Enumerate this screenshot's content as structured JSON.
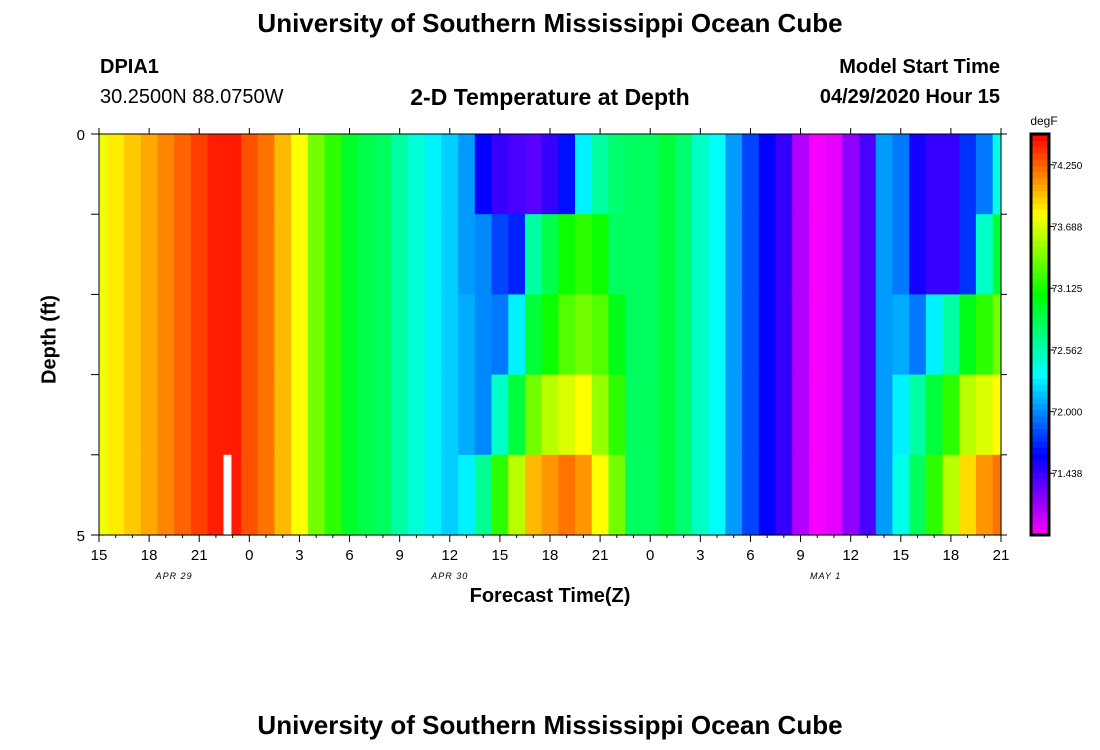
{
  "header": {
    "title": "University of Southern Mississippi Ocean Cube",
    "station_id": "DPIA1",
    "station_coords": "30.2500N 88.0750W",
    "plot_title": "2-D Temperature at Depth",
    "model_start_label": "Model Start Time",
    "model_start_value": "04/29/2020 Hour 15"
  },
  "footer": {
    "title": "University of Southern Mississippi Ocean Cube"
  },
  "chart_data": {
    "type": "heatmap",
    "title": "2-D Temperature at Depth",
    "xlabel": "Forecast Time(Z)",
    "ylabel": "Depth (ft)",
    "x_hours": [
      15,
      16,
      17,
      18,
      19,
      20,
      21,
      22,
      23,
      0,
      1,
      2,
      3,
      4,
      5,
      6,
      7,
      8,
      9,
      10,
      11,
      12,
      13,
      14,
      15,
      16,
      17,
      18,
      19,
      20,
      21,
      22,
      23,
      0,
      1,
      2,
      3,
      4,
      5,
      6,
      7,
      8,
      9,
      10,
      11,
      12,
      13,
      14,
      15,
      16,
      17,
      18,
      19,
      20,
      21
    ],
    "x_tick_labels": [
      "15",
      "18",
      "21",
      "0",
      "3",
      "6",
      "9",
      "12",
      "15",
      "18",
      "21",
      "0",
      "3",
      "6",
      "9",
      "12",
      "15",
      "18",
      "21"
    ],
    "date_labels": [
      {
        "label": "APR 29",
        "at_step": 4.5
      },
      {
        "label": "APR 30",
        "at_step": 21
      },
      {
        "label": "MAY 1",
        "at_step": 43.5
      }
    ],
    "y_ticks": [
      "0",
      "5"
    ],
    "ylim": [
      0,
      5
    ],
    "depth_rows": [
      0.5,
      1.5,
      2.5,
      3.5,
      4.5
    ],
    "colorbar": {
      "units": "degF",
      "min": 70.875,
      "max": 74.531,
      "ticks": [
        "74.250",
        "73.688",
        "73.125",
        "72.562",
        "72.000",
        "71.438"
      ]
    },
    "temperature_degF": [
      [
        73.75,
        73.85,
        73.95,
        74.05,
        74.15,
        74.25,
        74.35,
        74.45,
        74.45,
        74.3,
        74.2,
        74.0,
        73.8,
        73.4,
        73.2,
        72.95,
        72.85,
        72.8,
        72.6,
        72.45,
        72.3,
        72.2,
        72.05,
        71.6,
        71.45,
        71.4,
        71.35,
        71.45,
        71.65,
        72.3,
        72.6,
        72.75,
        72.8,
        72.8,
        72.9,
        72.75,
        72.5,
        72.35,
        72.05,
        71.8,
        71.6,
        71.45,
        71.1,
        70.9,
        70.95,
        71.2,
        71.4,
        72.05,
        71.95,
        71.55,
        71.45,
        71.45,
        71.75,
        71.95,
        72.4
      ],
      [
        73.75,
        73.85,
        73.95,
        74.05,
        74.15,
        74.25,
        74.35,
        74.45,
        74.45,
        74.3,
        74.2,
        74.0,
        73.8,
        73.4,
        73.2,
        72.95,
        72.85,
        72.8,
        72.6,
        72.45,
        72.3,
        72.2,
        72.05,
        72.0,
        71.8,
        71.7,
        72.6,
        72.85,
        73.1,
        73.2,
        73.1,
        72.8,
        72.8,
        72.8,
        72.9,
        72.75,
        72.5,
        72.35,
        72.05,
        71.8,
        71.6,
        71.45,
        71.1,
        70.9,
        70.95,
        71.2,
        71.4,
        72.05,
        71.95,
        71.55,
        71.45,
        71.45,
        71.75,
        72.5,
        72.9
      ],
      [
        73.75,
        73.85,
        73.95,
        74.05,
        74.15,
        74.25,
        74.35,
        74.45,
        74.45,
        74.3,
        74.2,
        74.0,
        73.8,
        73.4,
        73.2,
        72.95,
        72.85,
        72.8,
        72.6,
        72.45,
        72.3,
        72.2,
        72.1,
        72.0,
        71.95,
        72.3,
        72.9,
        73.1,
        73.3,
        73.4,
        73.3,
        73.0,
        72.8,
        72.8,
        72.9,
        72.75,
        72.5,
        72.35,
        72.05,
        71.8,
        71.6,
        71.45,
        71.1,
        70.9,
        70.95,
        71.2,
        71.4,
        72.05,
        72.1,
        71.95,
        72.3,
        72.6,
        73.0,
        73.2,
        73.4
      ],
      [
        73.75,
        73.85,
        73.95,
        74.05,
        74.15,
        74.25,
        74.35,
        74.45,
        74.45,
        74.3,
        74.2,
        74.0,
        73.8,
        73.4,
        73.2,
        72.95,
        72.85,
        72.8,
        72.6,
        72.45,
        72.3,
        72.2,
        72.1,
        72.0,
        72.5,
        72.9,
        73.4,
        73.6,
        73.7,
        73.8,
        73.5,
        73.2,
        72.8,
        72.8,
        72.9,
        72.75,
        72.5,
        72.35,
        72.05,
        71.8,
        71.6,
        71.45,
        71.1,
        70.9,
        70.95,
        71.2,
        71.4,
        72.05,
        72.3,
        72.6,
        72.9,
        73.2,
        73.6,
        73.7,
        73.8
      ],
      [
        73.75,
        73.85,
        73.95,
        74.05,
        74.15,
        74.25,
        74.35,
        74.45,
        74.45,
        74.3,
        74.2,
        74.0,
        73.8,
        73.4,
        73.2,
        72.95,
        72.85,
        72.8,
        72.6,
        72.45,
        72.3,
        72.2,
        72.3,
        72.65,
        73.2,
        73.6,
        74.0,
        74.1,
        74.2,
        74.1,
        73.8,
        73.4,
        72.8,
        72.8,
        72.9,
        72.75,
        72.5,
        72.35,
        72.05,
        71.8,
        71.6,
        71.45,
        71.1,
        70.9,
        70.95,
        71.2,
        71.4,
        72.05,
        72.4,
        72.8,
        73.2,
        73.6,
        73.9,
        74.1,
        74.2
      ]
    ],
    "annotation": "white marker bar near APR 29 hour 23 at bottom depth"
  }
}
